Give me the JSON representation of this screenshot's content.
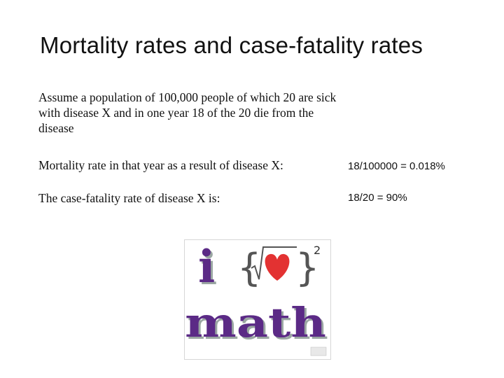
{
  "slide": {
    "title": "Mortality rates and case-fatality rates",
    "intro_text": "Assume a population of 100,000 people of which 20 are sick with disease X and in one year 18 of the 20 die from the disease",
    "rows": [
      {
        "label": "Mortality rate in that year as a result of disease X:",
        "value": "18/100000 = 0.018%"
      },
      {
        "label": "The case-fatality rate of disease X is:",
        "value": "18/20 = 90%"
      }
    ]
  },
  "logo": {
    "top_word": "i",
    "bottom_word": "math",
    "exponent": "2",
    "colors": {
      "text": "#5b2a86",
      "text_shadow": "#9aa6a2",
      "heart": "#e33232",
      "bracket": "#555555"
    }
  }
}
